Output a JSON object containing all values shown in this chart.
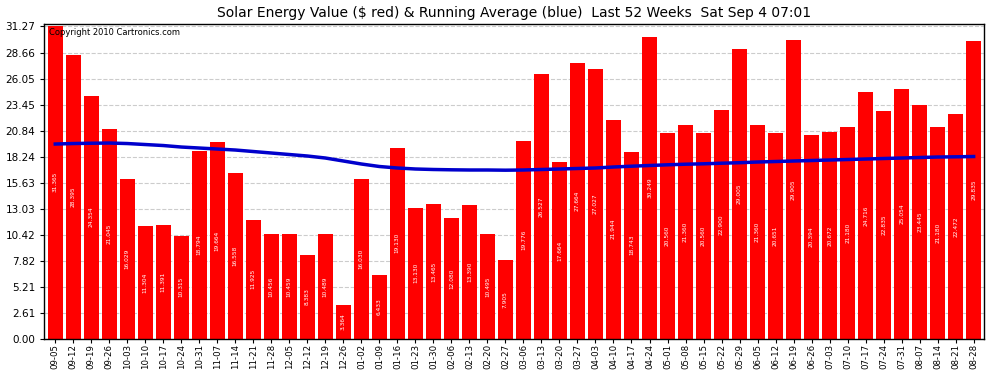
{
  "title": "Solar Energy Value ($ red) & Running Average (blue)  Last 52 Weeks  Sat Sep 4 07:01",
  "copyright": "Copyright 2010 Cartronics.com",
  "bar_color": "#ff0000",
  "line_color": "#0000cc",
  "background_color": "#ffffff",
  "plot_bg_color": "#ffffff",
  "grid_color": "#cccccc",
  "ylim": [
    0.0,
    31.57
  ],
  "yticks": [
    0.0,
    2.61,
    5.21,
    7.82,
    10.42,
    13.03,
    15.63,
    18.24,
    20.84,
    23.45,
    26.05,
    28.66,
    31.27
  ],
  "categories": [
    "09-05",
    "09-12",
    "09-19",
    "09-26",
    "10-03",
    "10-10",
    "10-17",
    "10-24",
    "10-31",
    "11-07",
    "11-14",
    "11-21",
    "11-28",
    "12-05",
    "12-12",
    "12-19",
    "12-26",
    "01-02",
    "01-09",
    "01-16",
    "01-23",
    "01-30",
    "02-06",
    "02-13",
    "02-20",
    "02-27",
    "03-06",
    "03-13",
    "03-20",
    "03-27",
    "04-03",
    "04-10",
    "04-17",
    "04-24",
    "05-01",
    "05-08",
    "05-15",
    "05-22",
    "05-29",
    "06-05",
    "06-12",
    "06-19",
    "06-26",
    "07-03",
    "07-10",
    "07-17",
    "07-24",
    "07-31",
    "08-07",
    "08-14",
    "08-21",
    "08-28"
  ],
  "bar_values": [
    31.365,
    28.395,
    24.354,
    21.045,
    16.029,
    11.304,
    11.391,
    10.315,
    18.794,
    19.664,
    16.558,
    11.925,
    10.456,
    10.459,
    8.383,
    10.489,
    3.364,
    16.03,
    6.433,
    19.13,
    13.13,
    13.465,
    12.08,
    13.39,
    10.495,
    7.905,
    19.776,
    26.527,
    17.664,
    27.664,
    27.027,
    21.944,
    18.743,
    30.249,
    20.56,
    21.36,
    20.56,
    22.9,
    29.005,
    21.36,
    20.651,
    29.905,
    20.394,
    20.672,
    21.18,
    24.716,
    22.835,
    25.054,
    23.445,
    21.18,
    22.472,
    29.835
  ],
  "bar_labels": [
    "31.365",
    "28.395",
    "24.354",
    "21.045",
    "16.029",
    "11.304",
    "11.391",
    "10.315",
    "18.794",
    "19.664",
    "16.558",
    "11.925",
    "10.456",
    "10.459",
    "8.383",
    "10.489",
    "3.364",
    "16.030",
    "6.433",
    "19.130",
    "13.130",
    "13.465",
    "12.080",
    "13.390",
    "10.495",
    "7.905",
    "19.776",
    "26.527",
    "17.664",
    "27.664",
    "27.027",
    "21.944",
    "18.743",
    "30.249",
    "20.560",
    "21.360",
    "20.560",
    "22.900",
    "29.005",
    "21.360",
    "20.651",
    "29.905",
    "20.394",
    "20.672",
    "21.180",
    "24.716",
    "22.835",
    "25.054",
    "23.445",
    "21.180",
    "22.472",
    "29.835"
  ],
  "running_avg": [
    19.5,
    19.55,
    19.58,
    19.6,
    19.55,
    19.45,
    19.35,
    19.2,
    19.1,
    19.0,
    18.9,
    18.75,
    18.6,
    18.45,
    18.3,
    18.1,
    17.8,
    17.5,
    17.25,
    17.1,
    17.0,
    16.95,
    16.92,
    16.9,
    16.9,
    16.88,
    16.9,
    16.95,
    17.0,
    17.05,
    17.1,
    17.2,
    17.28,
    17.35,
    17.42,
    17.48,
    17.52,
    17.58,
    17.63,
    17.7,
    17.75,
    17.8,
    17.85,
    17.9,
    17.95,
    18.0,
    18.05,
    18.1,
    18.15,
    18.2,
    18.22,
    18.25
  ]
}
